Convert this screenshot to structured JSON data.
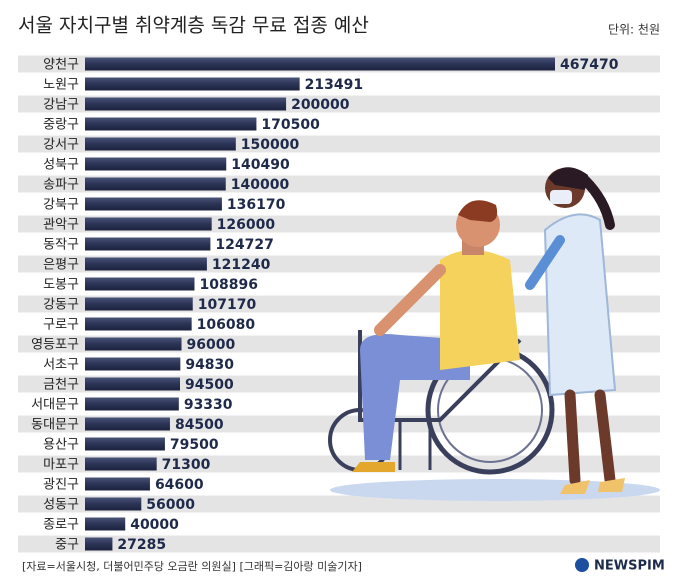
{
  "chart_data": {
    "type": "bar",
    "title": "서울 자치구별 취약계층 독감 무료 접종 예산",
    "unit": "단위: 천원",
    "categories": [
      "양천구",
      "노원구",
      "강남구",
      "중랑구",
      "강서구",
      "성북구",
      "송파구",
      "강북구",
      "관악구",
      "동작구",
      "은평구",
      "도봉구",
      "강동구",
      "구로구",
      "영등포구",
      "서초구",
      "금천구",
      "서대문구",
      "동대문구",
      "용산구",
      "마포구",
      "광진구",
      "성동구",
      "종로구",
      "중구"
    ],
    "values": [
      467470,
      213491,
      200000,
      170500,
      150000,
      140490,
      140000,
      136170,
      126000,
      124727,
      121240,
      108896,
      107170,
      106080,
      96000,
      94830,
      94500,
      93330,
      84500,
      79500,
      71300,
      64600,
      56000,
      40000,
      27285
    ],
    "color": "#2b3455",
    "source": "[자료=서울시청, 더불어민주당 오금란 의원실] [그래픽=김아랑 미술기자]",
    "logo": "NEWSPIM"
  }
}
